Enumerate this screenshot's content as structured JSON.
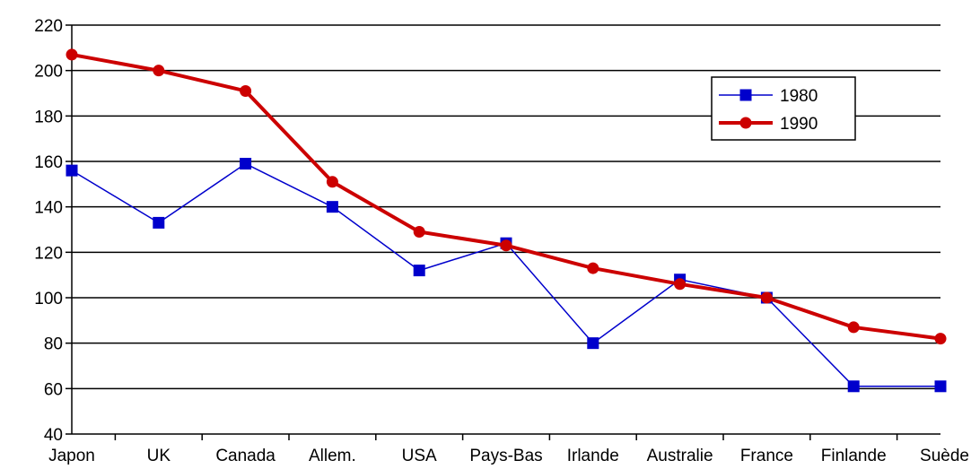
{
  "chart_data": {
    "type": "line",
    "categories": [
      "Japon",
      "UK",
      "Canada",
      "Allem.",
      "USA",
      "Pays-Bas",
      "Irlande",
      "Australie",
      "France",
      "Finlande",
      "Suède"
    ],
    "series": [
      {
        "name": "1980",
        "color": "#0000CC",
        "marker": "square",
        "values": [
          156,
          133,
          159,
          140,
          112,
          124,
          80,
          108,
          100,
          61,
          61
        ]
      },
      {
        "name": "1990",
        "color": "#CC0000",
        "marker": "circle",
        "values": [
          207,
          200,
          191,
          151,
          129,
          123,
          113,
          106,
          100,
          87,
          82
        ]
      }
    ],
    "ylim": [
      40,
      220
    ],
    "yticks": [
      40,
      60,
      80,
      100,
      120,
      140,
      160,
      180,
      200,
      220
    ],
    "grid": true,
    "legend": "top-right",
    "title": "",
    "xlabel": "",
    "ylabel": ""
  }
}
